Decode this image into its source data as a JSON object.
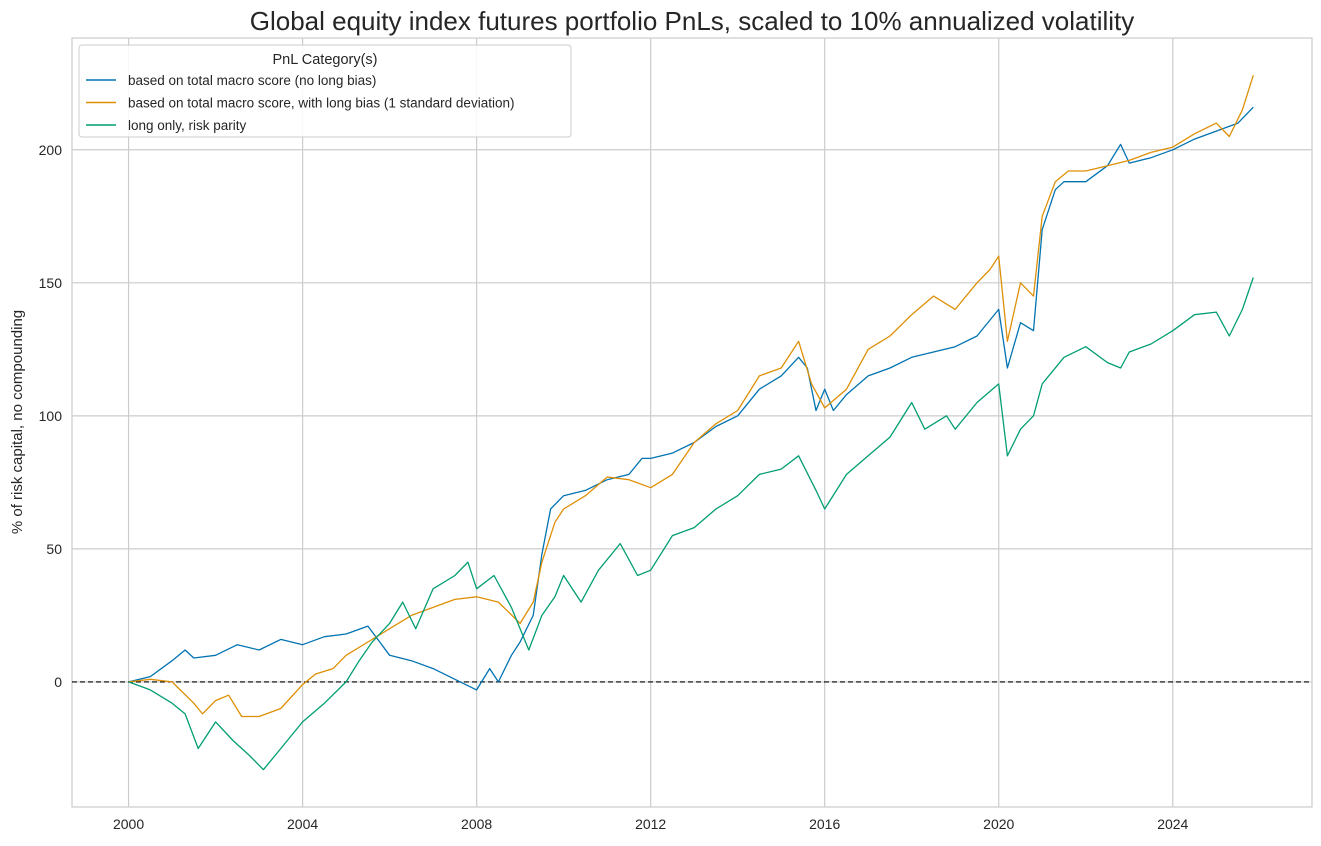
{
  "chart_data": {
    "type": "line",
    "title": "Global equity index futures portfolio PnLs, scaled to 10% annualized volatility",
    "xlabel": "",
    "ylabel": "% of risk capital, no compounding",
    "xlim": [
      1998.7,
      2027.2
    ],
    "ylim": [
      -47,
      242
    ],
    "xticks": [
      "2000",
      "2004",
      "2008",
      "2012",
      "2016",
      "2020",
      "2024"
    ],
    "yticks": [
      "0",
      "50",
      "100",
      "150",
      "200"
    ],
    "grid": true,
    "hline": {
      "y": 0,
      "style": "dashed",
      "color": "#000000"
    },
    "legend": {
      "title": "PnL Category(s)",
      "placement": "top-left"
    },
    "series": [
      {
        "name": "based on total macro score (no long bias)",
        "color": "#0173b2",
        "x": [
          2000,
          2000.5,
          2001,
          2001.3,
          2001.5,
          2002,
          2002.5,
          2003,
          2003.5,
          2004,
          2004.5,
          2005,
          2005.5,
          2006,
          2006.5,
          2007,
          2007.5,
          2008,
          2008.3,
          2008.5,
          2008.8,
          2009,
          2009.3,
          2009.5,
          2009.7,
          2010,
          2010.5,
          2011,
          2011.5,
          2011.8,
          2012,
          2012.5,
          2013,
          2013.5,
          2014,
          2014.5,
          2015,
          2015.4,
          2015.6,
          2015.8,
          2016,
          2016.2,
          2016.5,
          2017,
          2017.5,
          2018,
          2018.5,
          2019,
          2019.5,
          2020,
          2020.2,
          2020.5,
          2020.8,
          2021,
          2021.3,
          2021.5,
          2022,
          2022.5,
          2022.8,
          2023,
          2023.5,
          2024,
          2024.5,
          2025,
          2025.5,
          2025.85
        ],
        "y": [
          0,
          2,
          8,
          12,
          9,
          10,
          14,
          12,
          16,
          14,
          17,
          18,
          21,
          10,
          8,
          5,
          1,
          -3,
          5,
          0,
          10,
          15,
          25,
          48,
          65,
          70,
          72,
          76,
          78,
          84,
          84,
          86,
          90,
          96,
          100,
          110,
          115,
          122,
          118,
          102,
          110,
          102,
          108,
          115,
          118,
          122,
          124,
          126,
          130,
          140,
          118,
          135,
          132,
          170,
          185,
          188,
          188,
          194,
          202,
          195,
          197,
          200,
          204,
          207,
          210,
          216
        ]
      },
      {
        "name": "based on total macro score, with long bias (1 standard deviation)",
        "color": "#de8f05",
        "x": [
          2000,
          2000.5,
          2001,
          2001.5,
          2001.7,
          2002,
          2002.3,
          2002.6,
          2003,
          2003.5,
          2004,
          2004.3,
          2004.7,
          2005,
          2005.5,
          2006,
          2006.5,
          2007,
          2007.5,
          2008,
          2008.5,
          2009,
          2009.3,
          2009.5,
          2009.8,
          2010,
          2010.5,
          2011,
          2011.5,
          2012,
          2012.5,
          2013,
          2013.5,
          2014,
          2014.5,
          2015,
          2015.4,
          2015.7,
          2016,
          2016.5,
          2017,
          2017.5,
          2018,
          2018.5,
          2019,
          2019.5,
          2019.8,
          2020,
          2020.2,
          2020.5,
          2020.8,
          2021,
          2021.3,
          2021.6,
          2022,
          2022.5,
          2023,
          2023.5,
          2024,
          2024.5,
          2025,
          2025.3,
          2025.6,
          2025.85
        ],
        "y": [
          0,
          1,
          0,
          -8,
          -12,
          -7,
          -5,
          -13,
          -13,
          -10,
          -1,
          3,
          5,
          10,
          15,
          20,
          25,
          28,
          31,
          32,
          30,
          22,
          30,
          45,
          60,
          65,
          70,
          77,
          76,
          73,
          78,
          90,
          97,
          102,
          115,
          118,
          128,
          112,
          103,
          110,
          125,
          130,
          138,
          145,
          140,
          150,
          155,
          160,
          128,
          150,
          145,
          175,
          188,
          192,
          192,
          194,
          196,
          199,
          201,
          206,
          210,
          205,
          215,
          228
        ]
      },
      {
        "name": "long only, risk parity",
        "color": "#029e73",
        "x": [
          2000,
          2000.5,
          2001,
          2001.3,
          2001.6,
          2002,
          2002.4,
          2002.8,
          2003.1,
          2003.5,
          2004,
          2004.5,
          2005,
          2005.3,
          2005.6,
          2006,
          2006.3,
          2006.6,
          2007,
          2007.5,
          2007.8,
          2008,
          2008.4,
          2008.8,
          2009.2,
          2009.5,
          2009.8,
          2010,
          2010.4,
          2010.8,
          2011.3,
          2011.7,
          2012,
          2012.5,
          2013,
          2013.5,
          2014,
          2014.5,
          2015,
          2015.4,
          2015.8,
          2016,
          2016.5,
          2017,
          2017.5,
          2018,
          2018.3,
          2018.8,
          2019,
          2019.5,
          2020,
          2020.2,
          2020.5,
          2020.8,
          2021,
          2021.5,
          2022,
          2022.5,
          2022.8,
          2023,
          2023.5,
          2024,
          2024.5,
          2025,
          2025.3,
          2025.6,
          2025.85
        ],
        "y": [
          0,
          -3,
          -8,
          -12,
          -25,
          -15,
          -22,
          -28,
          -33,
          -25,
          -15,
          -8,
          0,
          8,
          15,
          22,
          30,
          20,
          35,
          40,
          45,
          35,
          40,
          28,
          12,
          25,
          32,
          40,
          30,
          42,
          52,
          40,
          42,
          55,
          58,
          65,
          70,
          78,
          80,
          85,
          72,
          65,
          78,
          85,
          92,
          105,
          95,
          100,
          95,
          105,
          112,
          85,
          95,
          100,
          112,
          122,
          126,
          120,
          118,
          124,
          127,
          132,
          138,
          139,
          130,
          140,
          152
        ]
      }
    ]
  }
}
